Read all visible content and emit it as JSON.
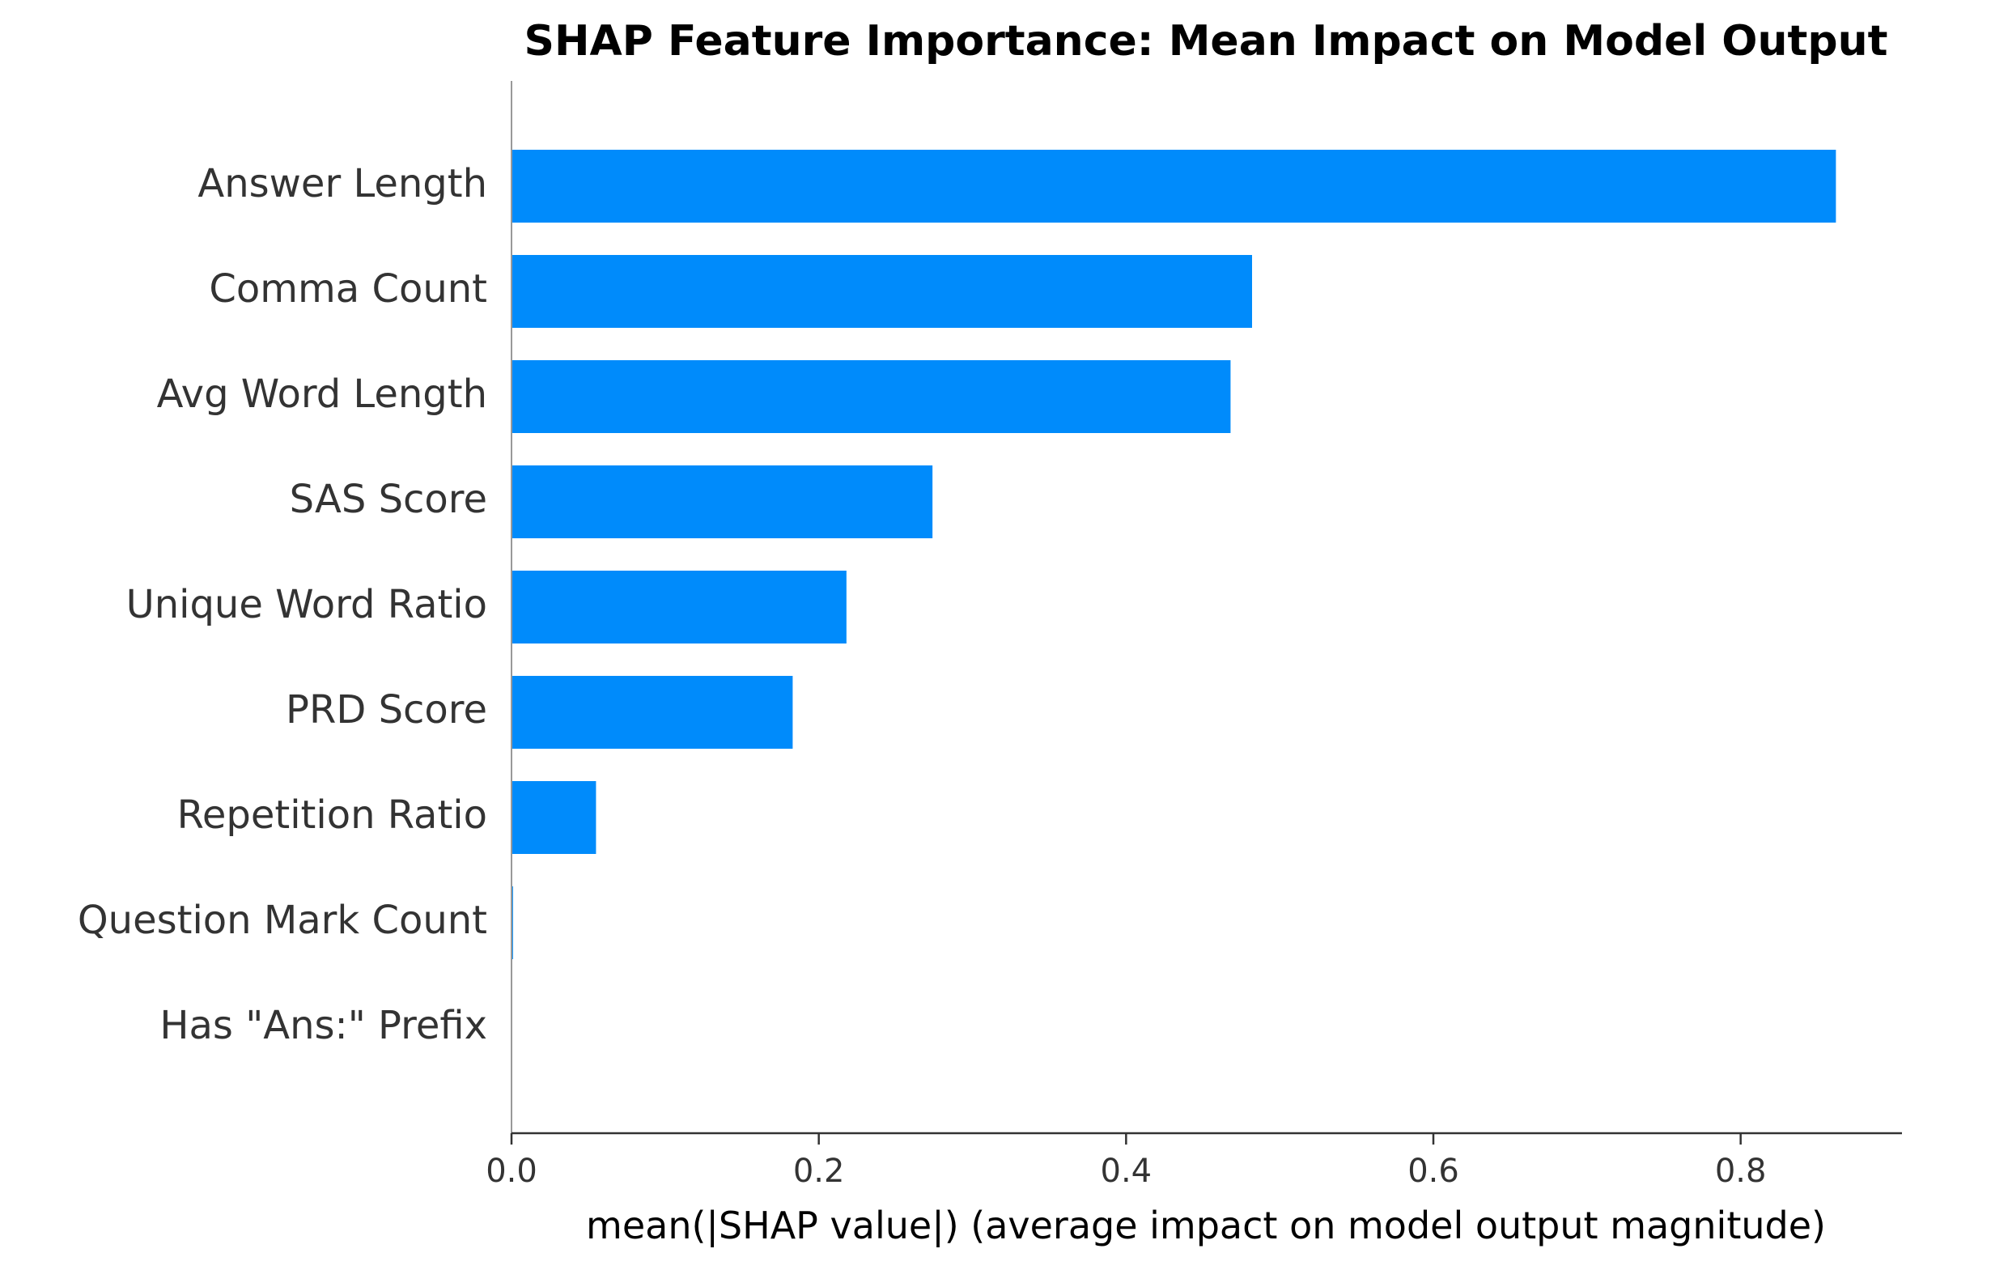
{
  "chart_data": {
    "type": "bar",
    "orientation": "horizontal",
    "title": "SHAP Feature Importance: Mean Impact on Model Output",
    "xlabel": "mean(|SHAP value|) (average impact on model output magnitude)",
    "ylabel": "",
    "categories": [
      "Answer Length",
      "Comma Count",
      "Avg Word Length",
      "SAS Score",
      "Unique Word Ratio",
      "PRD Score",
      "Repetition Ratio",
      "Question Mark Count",
      "Has \"Ans:\" Prefix"
    ],
    "values": [
      0.862,
      0.482,
      0.468,
      0.274,
      0.218,
      0.183,
      0.055,
      0.001,
      0.0
    ],
    "xlim": [
      0,
      0.905
    ],
    "xticks": [
      "0.0",
      "0.2",
      "0.4",
      "0.6",
      "0.8"
    ],
    "xtick_values": [
      0,
      0.2,
      0.4,
      0.6,
      0.8
    ],
    "grid": false,
    "bar_color": "#008bfb",
    "axis_color": "#333333"
  }
}
